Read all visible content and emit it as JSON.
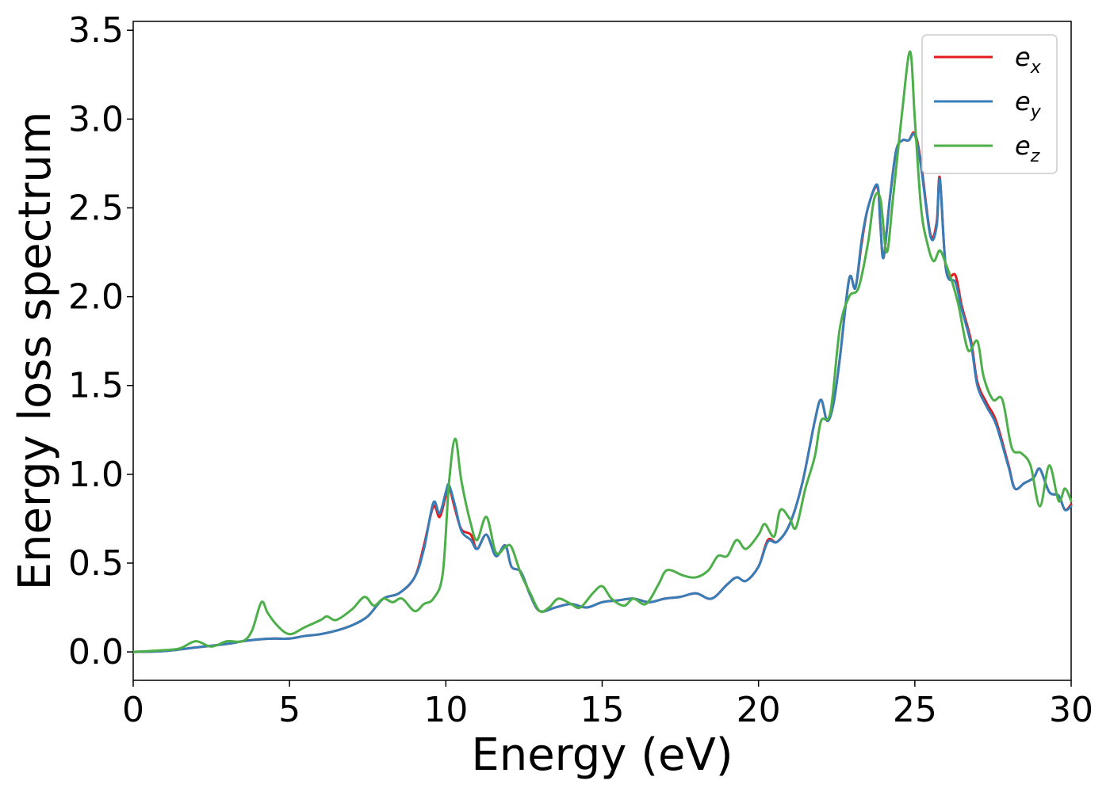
{
  "chart_data": {
    "type": "line",
    "xlabel": "Energy (eV)",
    "ylabel": "Energy loss spectrum",
    "xlim": [
      0,
      30
    ],
    "ylim": [
      -0.16,
      3.55
    ],
    "xticks": [
      0,
      5,
      10,
      15,
      20,
      25,
      30
    ],
    "xtick_labels": [
      "0",
      "5",
      "10",
      "15",
      "20",
      "25",
      "30"
    ],
    "yticks": [
      0.0,
      0.5,
      1.0,
      1.5,
      2.0,
      2.5,
      3.0,
      3.5
    ],
    "ytick_labels": [
      "0.0",
      "0.5",
      "1.0",
      "1.5",
      "2.0",
      "2.5",
      "3.0",
      "3.5"
    ],
    "grid": false,
    "legend_position": "top-right",
    "series": [
      {
        "name": "e_x",
        "label_base": "e",
        "label_sub": "x",
        "color": "#e41a1c",
        "x": [
          0,
          1,
          2,
          3,
          3.5,
          4,
          4.5,
          5,
          5.5,
          6,
          6.5,
          7,
          7.5,
          8,
          8.5,
          9,
          9.3,
          9.6,
          9.8,
          10,
          10.1,
          10.3,
          10.5,
          10.8,
          11,
          11.3,
          11.6,
          11.9,
          12.1,
          12.4,
          12.7,
          13,
          13.5,
          14,
          14.5,
          15,
          15.5,
          16,
          16.5,
          17,
          17.5,
          18,
          18.5,
          19,
          19.3,
          19.6,
          20,
          20.3,
          20.6,
          21,
          21.4,
          21.8,
          22,
          22.2,
          22.4,
          22.6,
          22.9,
          23.1,
          23.3,
          23.5,
          23.8,
          23.9,
          24,
          24.2,
          24.4,
          24.6,
          24.8,
          25,
          25.2,
          25.5,
          25.7,
          25.8,
          26,
          26.3,
          26.5,
          26.8,
          27,
          27.3,
          27.6,
          28,
          28.2,
          28.5,
          28.8,
          29,
          29.3,
          29.6,
          29.8,
          30
        ],
        "y": [
          0,
          0.005,
          0.025,
          0.045,
          0.06,
          0.07,
          0.075,
          0.075,
          0.09,
          0.1,
          0.12,
          0.15,
          0.2,
          0.3,
          0.33,
          0.42,
          0.6,
          0.82,
          0.76,
          0.88,
          0.93,
          0.8,
          0.69,
          0.66,
          0.58,
          0.66,
          0.54,
          0.6,
          0.48,
          0.45,
          0.32,
          0.23,
          0.25,
          0.27,
          0.25,
          0.28,
          0.29,
          0.3,
          0.28,
          0.3,
          0.31,
          0.33,
          0.3,
          0.38,
          0.42,
          0.4,
          0.48,
          0.63,
          0.62,
          0.72,
          0.95,
          1.3,
          1.42,
          1.3,
          1.4,
          1.65,
          2.1,
          2.05,
          2.3,
          2.5,
          2.62,
          2.4,
          2.22,
          2.55,
          2.82,
          2.88,
          2.88,
          2.92,
          2.75,
          2.35,
          2.42,
          2.67,
          2.15,
          2.12,
          1.95,
          1.75,
          1.52,
          1.4,
          1.3,
          1.05,
          0.92,
          0.95,
          0.98,
          1.03,
          0.9,
          0.88,
          0.8,
          0.83
        ]
      },
      {
        "name": "e_y",
        "label_base": "e",
        "label_sub": "y",
        "color": "#377eb8",
        "x": [
          0,
          1,
          2,
          3,
          3.5,
          4,
          4.5,
          5,
          5.5,
          6,
          6.5,
          7,
          7.5,
          8,
          8.5,
          9,
          9.3,
          9.6,
          9.8,
          10,
          10.1,
          10.3,
          10.5,
          10.8,
          11,
          11.3,
          11.6,
          11.9,
          12.1,
          12.4,
          12.7,
          13,
          13.5,
          14,
          14.5,
          15,
          15.5,
          16,
          16.5,
          17,
          17.5,
          18,
          18.5,
          19,
          19.3,
          19.6,
          20,
          20.3,
          20.6,
          21,
          21.4,
          21.8,
          22,
          22.2,
          22.4,
          22.6,
          22.9,
          23.1,
          23.3,
          23.5,
          23.8,
          23.9,
          24,
          24.2,
          24.4,
          24.6,
          24.8,
          25,
          25.2,
          25.5,
          25.7,
          25.8,
          26,
          26.3,
          26.5,
          26.8,
          27,
          27.3,
          27.6,
          28,
          28.2,
          28.5,
          28.8,
          29,
          29.3,
          29.6,
          29.8,
          30
        ],
        "y": [
          0,
          0.005,
          0.025,
          0.045,
          0.06,
          0.07,
          0.075,
          0.075,
          0.09,
          0.1,
          0.12,
          0.15,
          0.2,
          0.3,
          0.33,
          0.42,
          0.58,
          0.84,
          0.78,
          0.9,
          0.94,
          0.82,
          0.68,
          0.63,
          0.58,
          0.66,
          0.54,
          0.6,
          0.48,
          0.45,
          0.32,
          0.23,
          0.25,
          0.27,
          0.25,
          0.28,
          0.29,
          0.3,
          0.28,
          0.3,
          0.31,
          0.33,
          0.3,
          0.38,
          0.42,
          0.4,
          0.48,
          0.62,
          0.62,
          0.72,
          0.95,
          1.3,
          1.42,
          1.3,
          1.4,
          1.65,
          2.1,
          2.05,
          2.32,
          2.5,
          2.63,
          2.4,
          2.22,
          2.55,
          2.82,
          2.88,
          2.88,
          2.91,
          2.73,
          2.34,
          2.4,
          2.66,
          2.15,
          2.08,
          1.93,
          1.73,
          1.5,
          1.38,
          1.28,
          1.04,
          0.92,
          0.95,
          0.98,
          1.03,
          0.9,
          0.88,
          0.8,
          0.82
        ]
      },
      {
        "name": "e_z",
        "label_base": "e",
        "label_sub": "z",
        "color": "#4daf4a",
        "x": [
          0,
          1,
          1.5,
          2,
          2.5,
          3,
          3.5,
          3.8,
          4.1,
          4.3,
          4.6,
          5,
          5.5,
          6,
          6.2,
          6.5,
          7,
          7.4,
          7.7,
          8,
          8.3,
          8.6,
          9,
          9.3,
          9.6,
          9.9,
          10.1,
          10.3,
          10.5,
          10.8,
          11,
          11.3,
          11.6,
          11.9,
          12.1,
          12.4,
          12.7,
          13,
          13.3,
          13.6,
          14,
          14.3,
          14.7,
          15,
          15.3,
          15.7,
          16,
          16.4,
          16.8,
          17,
          17.2,
          17.6,
          18,
          18.4,
          18.7,
          19,
          19.3,
          19.6,
          20,
          20.2,
          20.5,
          20.7,
          21,
          21.2,
          21.5,
          21.8,
          22,
          22.3,
          22.6,
          22.9,
          23.2,
          23.5,
          23.7,
          23.9,
          24.1,
          24.3,
          24.6,
          24.85,
          25,
          25.2,
          25.4,
          25.6,
          25.8,
          26,
          26.2,
          26.4,
          26.7,
          27,
          27.2,
          27.5,
          27.8,
          28.1,
          28.4,
          28.7,
          29,
          29.3,
          29.6,
          29.8,
          30
        ],
        "y": [
          0,
          0.01,
          0.02,
          0.06,
          0.03,
          0.06,
          0.06,
          0.12,
          0.28,
          0.22,
          0.15,
          0.1,
          0.14,
          0.18,
          0.2,
          0.18,
          0.24,
          0.31,
          0.26,
          0.3,
          0.28,
          0.3,
          0.23,
          0.27,
          0.3,
          0.44,
          0.95,
          1.2,
          0.96,
          0.72,
          0.63,
          0.76,
          0.56,
          0.59,
          0.59,
          0.44,
          0.33,
          0.23,
          0.25,
          0.3,
          0.27,
          0.25,
          0.33,
          0.37,
          0.3,
          0.26,
          0.3,
          0.27,
          0.38,
          0.45,
          0.46,
          0.43,
          0.42,
          0.46,
          0.54,
          0.54,
          0.63,
          0.58,
          0.66,
          0.72,
          0.65,
          0.8,
          0.75,
          0.7,
          0.92,
          1.1,
          1.3,
          1.35,
          1.82,
          2.0,
          2.05,
          2.3,
          2.55,
          2.55,
          2.25,
          2.55,
          3.05,
          3.38,
          3.0,
          2.5,
          2.3,
          2.2,
          2.26,
          2.18,
          2.08,
          1.95,
          1.7,
          1.75,
          1.55,
          1.42,
          1.42,
          1.15,
          1.12,
          1.05,
          0.82,
          1.05,
          0.85,
          0.92,
          0.85
        ]
      }
    ]
  }
}
